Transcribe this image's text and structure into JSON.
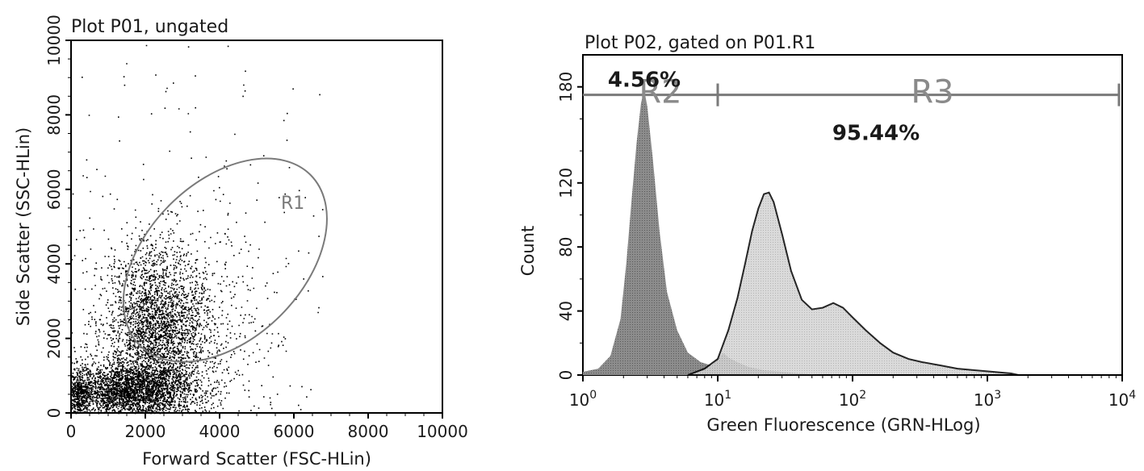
{
  "chart_data": [
    {
      "type": "scatter",
      "title": "Plot P01, ungated",
      "xlabel": "Forward Scatter (FSC-HLin)",
      "ylabel": "Side Scatter (SSC-HLin)",
      "xlim": [
        0,
        10000
      ],
      "ylim": [
        0,
        10000
      ],
      "xticks": [
        "0",
        "2000",
        "4000",
        "6000",
        "8000",
        "10000"
      ],
      "yticks": [
        "0",
        "2000",
        "4000",
        "6000",
        "8000",
        "10000"
      ],
      "point_color": "#000000",
      "clusters": [
        {
          "center": [
            2300,
            2200
          ],
          "spread": [
            700,
            1100
          ],
          "count": 2600
        },
        {
          "center": [
            1500,
            600
          ],
          "spread": [
            900,
            350
          ],
          "count": 2600
        },
        {
          "center": [
            2800,
            2300
          ],
          "spread": [
            1300,
            1500
          ],
          "count": 900
        },
        {
          "center": [
            200,
            500
          ],
          "spread": [
            150,
            350
          ],
          "count": 400
        }
      ],
      "gates": [
        {
          "name": "R1",
          "shape": "ellipse",
          "center": [
            4150,
            4100
          ],
          "radii": [
            3250,
            2100
          ],
          "rotation_deg": 45,
          "color": "#7a7a7a"
        }
      ]
    },
    {
      "type": "area",
      "title": "Plot P02, gated on P01.R1",
      "xlabel": "Green Fluorescence (GRN-HLog)",
      "ylabel": "Count",
      "xscale": "log",
      "xlim": [
        1,
        10000
      ],
      "ylim": [
        0,
        200
      ],
      "xticks": [
        {
          "base": "10",
          "exp": "0"
        },
        {
          "base": "10",
          "exp": "1"
        },
        {
          "base": "10",
          "exp": "2"
        },
        {
          "base": "10",
          "exp": "3"
        },
        {
          "base": "10",
          "exp": "4"
        }
      ],
      "yticks": [
        "0",
        "40",
        "80",
        "120",
        "180"
      ],
      "ytick_values": [
        0,
        40,
        80,
        120,
        180
      ],
      "series": [
        {
          "fill": "#8c8c8c",
          "points": [
            [
              1,
              2
            ],
            [
              1.3,
              4
            ],
            [
              1.6,
              12
            ],
            [
              1.9,
              35
            ],
            [
              2.1,
              70
            ],
            [
              2.3,
              110
            ],
            [
              2.5,
              145
            ],
            [
              2.7,
              170
            ],
            [
              2.85,
              178
            ],
            [
              3.0,
              168
            ],
            [
              3.3,
              135
            ],
            [
              3.7,
              90
            ],
            [
              4.2,
              52
            ],
            [
              5,
              28
            ],
            [
              6,
              14
            ],
            [
              7.5,
              8
            ],
            [
              9,
              6
            ],
            [
              10,
              10
            ],
            [
              11,
              14
            ],
            [
              12,
              11
            ],
            [
              14,
              8
            ],
            [
              17,
              5
            ],
            [
              22,
              3
            ],
            [
              30,
              2
            ],
            [
              40,
              1
            ],
            [
              60,
              0
            ]
          ]
        },
        {
          "fill": "#d4d4d4",
          "stroke": "#000000",
          "points": [
            [
              6,
              0
            ],
            [
              8,
              4
            ],
            [
              10,
              10
            ],
            [
              12,
              28
            ],
            [
              14,
              48
            ],
            [
              16,
              70
            ],
            [
              18,
              90
            ],
            [
              20,
              104
            ],
            [
              22,
              113
            ],
            [
              24,
              114
            ],
            [
              26,
              108
            ],
            [
              30,
              88
            ],
            [
              35,
              65
            ],
            [
              42,
              47
            ],
            [
              50,
              41
            ],
            [
              60,
              42
            ],
            [
              72,
              45
            ],
            [
              85,
              42
            ],
            [
              100,
              36
            ],
            [
              125,
              28
            ],
            [
              160,
              20
            ],
            [
              200,
              14
            ],
            [
              260,
              10
            ],
            [
              330,
              8
            ],
            [
              450,
              6
            ],
            [
              600,
              4
            ],
            [
              800,
              3
            ],
            [
              1100,
              2
            ],
            [
              1500,
              1
            ],
            [
              1700,
              0
            ]
          ]
        }
      ],
      "gates": [
        {
          "name": "R2",
          "range": [
            1,
            10
          ],
          "y": 175,
          "percent": "4.56%"
        },
        {
          "name": "R3",
          "range": [
            10,
            10000
          ],
          "y": 175,
          "percent": "95.44%"
        }
      ]
    }
  ]
}
